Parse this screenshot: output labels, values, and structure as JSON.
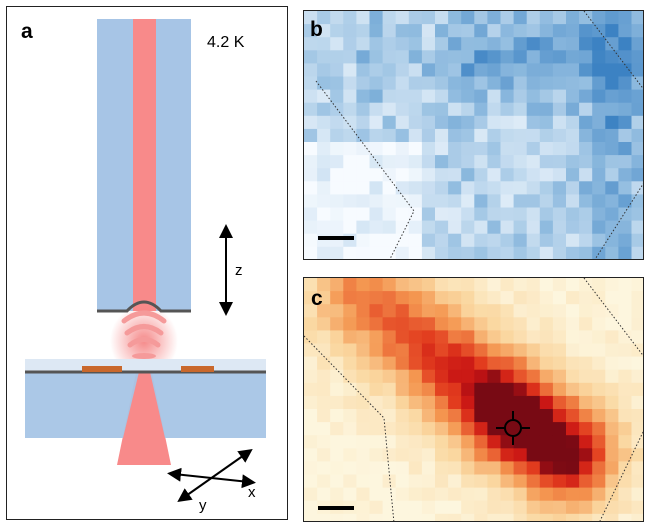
{
  "panels": {
    "a": {
      "letter": "a",
      "temperature": "4.2 K",
      "axis_z": "z",
      "axis_x": "x",
      "axis_y": "y"
    },
    "b": {
      "letter": "b",
      "colormap": "blue",
      "accent": "#3f86c4"
    },
    "c": {
      "letter": "c",
      "colormap": "orange-red",
      "accent": "#e0281b",
      "marker": "crosshair-circle-icon"
    }
  },
  "colors": {
    "fiber": "#a7c5e6",
    "beam": "#f88a8a",
    "substrate": "#a7c5e6",
    "electrode": "#c9682c"
  }
}
